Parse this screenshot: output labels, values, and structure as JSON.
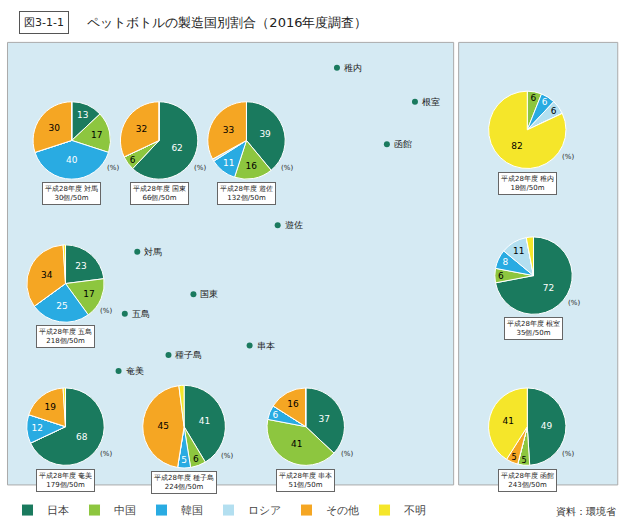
{
  "chart_data": {
    "type": "pie",
    "title": "ペットボトルの製造国別割合（2016年度調査）",
    "annotations": [
      "図3-1-1",
      "資料：環境省"
    ],
    "categories": [
      "日本",
      "中国",
      "韓国",
      "ロシア",
      "その他",
      "不明"
    ],
    "colors": [
      "#1a7a5e",
      "#8dc63f",
      "#29abe2",
      "#b3dff0",
      "#f5a623",
      "#f5e62a"
    ],
    "legend": "bottom",
    "data_labels": true,
    "series": [
      {
        "name": "平成28年度 対馬",
        "subtitle": "30個/50m",
        "values": [
          13,
          17,
          40,
          0,
          30,
          0
        ],
        "value_labels": [
          "13",
          "17",
          "40",
          null,
          "30",
          null
        ],
        "annotations": [
          "(%)",
          "対馬"
        ]
      },
      {
        "name": "平成28年度 国東",
        "subtitle": "66個/50m",
        "values": [
          62,
          6,
          0,
          0,
          32,
          0
        ],
        "value_labels": [
          "62",
          "6",
          null,
          null,
          "32",
          null
        ],
        "annotations": [
          "(%)",
          "国東"
        ]
      },
      {
        "name": "平成28年度 遊佐",
        "subtitle": "132個/50m",
        "values": [
          39,
          16,
          11,
          1,
          33,
          0
        ],
        "value_labels": [
          "39",
          "16",
          "11",
          null,
          "33",
          null
        ],
        "annotations": [
          "(%)",
          "遊佐"
        ]
      },
      {
        "name": "平成28年度 五島",
        "subtitle": "218個/50m",
        "values": [
          23,
          17,
          25,
          0,
          34,
          1
        ],
        "value_labels": [
          "23",
          "17",
          "25",
          null,
          "34",
          null
        ],
        "annotations": [
          "(%)",
          "五島"
        ]
      },
      {
        "name": "平成28年度 奄美",
        "subtitle": "179個/50m",
        "values": [
          68,
          0,
          12,
          0,
          19,
          1
        ],
        "value_labels": [
          "68",
          null,
          "12",
          null,
          "19",
          null
        ],
        "annotations": [
          "(%)",
          "奄美"
        ]
      },
      {
        "name": "平成28年度 種子島",
        "subtitle": "224個/50m",
        "values": [
          41,
          6,
          5,
          0,
          45,
          2
        ],
        "value_labels": [
          "41",
          "6",
          "5",
          null,
          "45",
          null
        ],
        "annotations": [
          "(%)",
          "種子島"
        ]
      },
      {
        "name": "平成28年度 串本",
        "subtitle": "51個/50m",
        "values": [
          37,
          41,
          6,
          0,
          16,
          0
        ],
        "value_labels": [
          "37",
          "41",
          "6",
          null,
          "16",
          null
        ],
        "annotations": [
          "(%)",
          "串本"
        ]
      },
      {
        "name": "平成28年度 稚内",
        "subtitle": "18個/50m",
        "values": [
          0,
          6,
          6,
          6,
          0,
          82
        ],
        "value_labels": [
          null,
          "6",
          "6",
          "6",
          null,
          "82"
        ],
        "annotations": [
          "(%)",
          "稚内"
        ]
      },
      {
        "name": "平成28年度 根室",
        "subtitle": "35個/50m",
        "values": [
          72,
          6,
          8,
          11,
          0,
          3
        ],
        "value_labels": [
          "72",
          "6",
          "8",
          "11",
          null,
          null
        ],
        "annotations": [
          "(%)",
          "根室"
        ]
      },
      {
        "name": "平成28年度 函館",
        "subtitle": "243個/50m",
        "values": [
          49,
          5,
          0,
          0,
          5,
          41
        ],
        "value_labels": [
          "49",
          "5",
          null,
          null,
          "5",
          "41"
        ],
        "annotations": [
          "(%)",
          "函館"
        ]
      }
    ]
  }
}
